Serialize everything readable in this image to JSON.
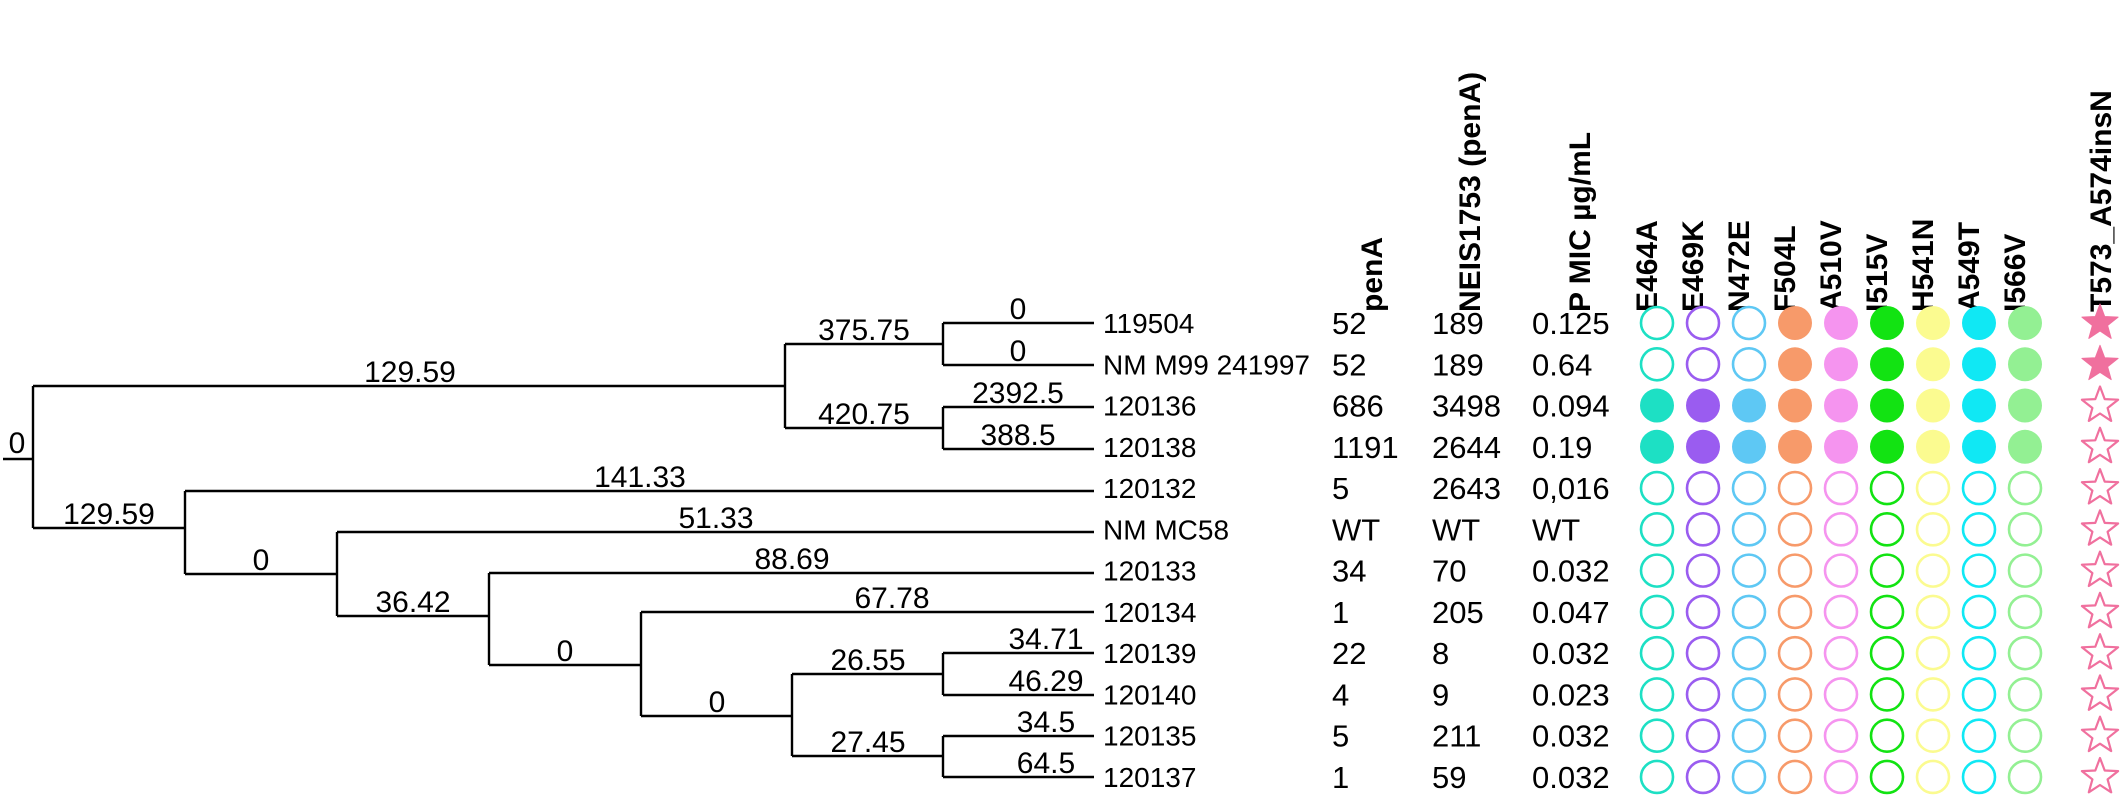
{
  "tree": {
    "root_label": "0",
    "branch_labels": {
      "root_upper": "129.59",
      "root_lower": "129.59",
      "c1": "375.75",
      "c1_tip_119504": "0",
      "c1_tip_m99": "0",
      "c2": "420.75",
      "c2_tip_120136": "2392.5",
      "c2_tip_120138": "388.5",
      "tip_120132": "141.33",
      "e1": "0",
      "tip_mc58": "51.33",
      "e2": "36.42",
      "tip_120133": "88.69",
      "e3": "0",
      "tip_120134": "67.78",
      "e4": "0",
      "e5": "26.55",
      "e5_tip_120139": "34.71",
      "e5_tip_120140": "46.29",
      "e6": "27.45",
      "e6_tip_120135": "34.5",
      "e6_tip_120137": "64.5"
    }
  },
  "columns": {
    "text_headers": [
      "penA",
      "NEIS1753 (penA)",
      "P MIC µg/mL"
    ],
    "mutation_headers": [
      "E464A",
      "E469K",
      "N472E",
      "F504L",
      "A510V",
      "I515V",
      "H541N",
      "A549T",
      "I566V",
      "T573_A574insN"
    ]
  },
  "mutation_colors": [
    "#1de0c4",
    "#9a5cf0",
    "#5ec8f4",
    "#f79a6a",
    "#f594ef",
    "#12e312",
    "#fbfb90",
    "#10e8f4",
    "#93f093",
    "#f0709e"
  ],
  "rows": [
    {
      "name": "119504",
      "penA": "52",
      "neis": "189",
      "mic": "0.125",
      "present": [
        false,
        false,
        false,
        true,
        true,
        true,
        true,
        true,
        true,
        true
      ]
    },
    {
      "name": "NM M99 241997",
      "penA": "52",
      "neis": "189",
      "mic": "0.64",
      "present": [
        false,
        false,
        false,
        true,
        true,
        true,
        true,
        true,
        true,
        true
      ]
    },
    {
      "name": "120136",
      "penA": "686",
      "neis": "3498",
      "mic": "0.094",
      "present": [
        true,
        true,
        true,
        true,
        true,
        true,
        true,
        true,
        true,
        false
      ]
    },
    {
      "name": "120138",
      "penA": "1191",
      "neis": "2644",
      "mic": "0.19",
      "present": [
        true,
        true,
        true,
        true,
        true,
        true,
        true,
        true,
        true,
        false
      ]
    },
    {
      "name": "120132",
      "penA": "5",
      "neis": "2643",
      "mic": "0,016",
      "present": [
        false,
        false,
        false,
        false,
        false,
        false,
        false,
        false,
        false,
        false
      ]
    },
    {
      "name": "NM MC58",
      "penA": "WT",
      "neis": "WT",
      "mic": "WT",
      "present": [
        false,
        false,
        false,
        false,
        false,
        false,
        false,
        false,
        false,
        false
      ]
    },
    {
      "name": "120133",
      "penA": "34",
      "neis": "70",
      "mic": "0.032",
      "present": [
        false,
        false,
        false,
        false,
        false,
        false,
        false,
        false,
        false,
        false
      ]
    },
    {
      "name": "120134",
      "penA": "1",
      "neis": "205",
      "mic": "0.047",
      "present": [
        false,
        false,
        false,
        false,
        false,
        false,
        false,
        false,
        false,
        false
      ]
    },
    {
      "name": "120139",
      "penA": "22",
      "neis": "8",
      "mic": "0.032",
      "present": [
        false,
        false,
        false,
        false,
        false,
        false,
        false,
        false,
        false,
        false
      ]
    },
    {
      "name": "120140",
      "penA": "4",
      "neis": "9",
      "mic": "0.023",
      "present": [
        false,
        false,
        false,
        false,
        false,
        false,
        false,
        false,
        false,
        false
      ]
    },
    {
      "name": "120135",
      "penA": "5",
      "neis": "211",
      "mic": "0.032",
      "present": [
        false,
        false,
        false,
        false,
        false,
        false,
        false,
        false,
        false,
        false
      ]
    },
    {
      "name": "120137",
      "penA": "1",
      "neis": "59",
      "mic": "0.032",
      "present": [
        false,
        false,
        false,
        false,
        false,
        false,
        false,
        false,
        false,
        false
      ]
    }
  ]
}
